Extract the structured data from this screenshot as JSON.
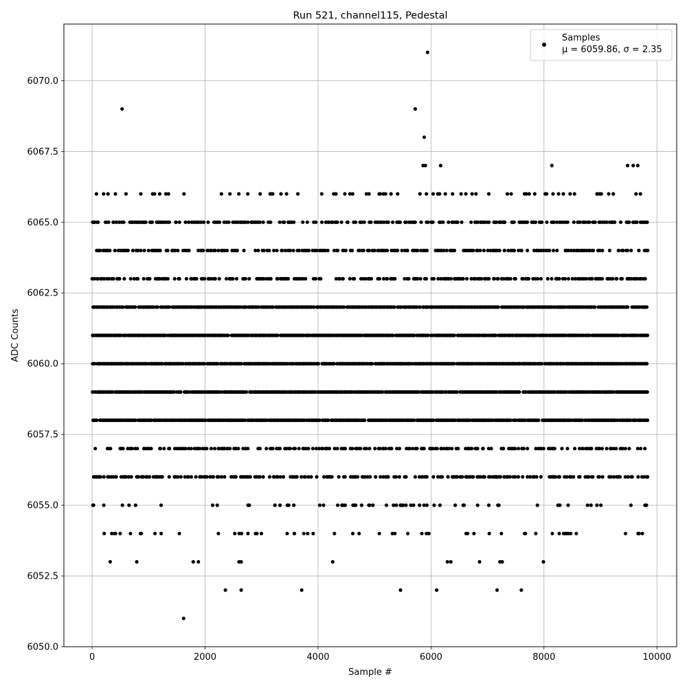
{
  "chart_data": {
    "type": "scatter",
    "title": "Run 521, channel115, Pedestal",
    "xlabel": "Sample #",
    "ylabel": "ADC Counts",
    "xlim": [
      -500,
      10350
    ],
    "ylim": [
      6050.0,
      6072.0
    ],
    "x_ticks": [
      0,
      2000,
      4000,
      6000,
      8000,
      10000
    ],
    "x_tick_labels": [
      "0",
      "2000",
      "4000",
      "6000",
      "8000",
      "10000"
    ],
    "y_ticks": [
      6050.0,
      6052.5,
      6055.0,
      6057.5,
      6060.0,
      6062.5,
      6065.0,
      6067.5,
      6070.0
    ],
    "y_tick_labels": [
      "6050.0",
      "6052.5",
      "6055.0",
      "6057.5",
      "6060.0",
      "6062.5",
      "6065.0",
      "6067.5",
      "6070.0"
    ],
    "grid": true,
    "legend_position": "top-right",
    "series": [
      {
        "name": "Samples",
        "color": "#000000",
        "marker": "dot",
        "n_samples": 10000,
        "x_range": [
          0,
          9830
        ],
        "level_counts": {
          "6060": "dense",
          "6061": "dense",
          "6059": "dense",
          "6062": "dense",
          "6058": "dense",
          "6063": "moderate",
          "6057": "moderate",
          "6064": "moderate",
          "6056": "moderate",
          "6065": "moderate",
          "6055": "sparse",
          "6054": "sparse",
          "6066": "sparse"
        },
        "outliers": [
          {
            "x": 530,
            "y": 6069
          },
          {
            "x": 5720,
            "y": 6069
          },
          {
            "x": 5940,
            "y": 6071
          },
          {
            "x": 5880,
            "y": 6068
          },
          {
            "x": 5900,
            "y": 6067
          },
          {
            "x": 5860,
            "y": 6067
          },
          {
            "x": 6170,
            "y": 6067
          },
          {
            "x": 8140,
            "y": 6067
          },
          {
            "x": 9480,
            "y": 6067
          },
          {
            "x": 9580,
            "y": 6067
          },
          {
            "x": 9660,
            "y": 6067
          },
          {
            "x": 320,
            "y": 6053
          },
          {
            "x": 790,
            "y": 6053
          },
          {
            "x": 1790,
            "y": 6053
          },
          {
            "x": 1880,
            "y": 6053
          },
          {
            "x": 2600,
            "y": 6053
          },
          {
            "x": 2640,
            "y": 6053
          },
          {
            "x": 4260,
            "y": 6053
          },
          {
            "x": 6290,
            "y": 6053
          },
          {
            "x": 6350,
            "y": 6053
          },
          {
            "x": 6860,
            "y": 6053
          },
          {
            "x": 7220,
            "y": 6053
          },
          {
            "x": 7260,
            "y": 6053
          },
          {
            "x": 7990,
            "y": 6053
          },
          {
            "x": 2360,
            "y": 6052
          },
          {
            "x": 2640,
            "y": 6052
          },
          {
            "x": 3710,
            "y": 6052
          },
          {
            "x": 5460,
            "y": 6052
          },
          {
            "x": 6100,
            "y": 6052
          },
          {
            "x": 7170,
            "y": 6052
          },
          {
            "x": 7600,
            "y": 6052
          },
          {
            "x": 1620,
            "y": 6051
          }
        ]
      }
    ],
    "legend_stats": "μ = 6059.86, σ = 2.35"
  }
}
